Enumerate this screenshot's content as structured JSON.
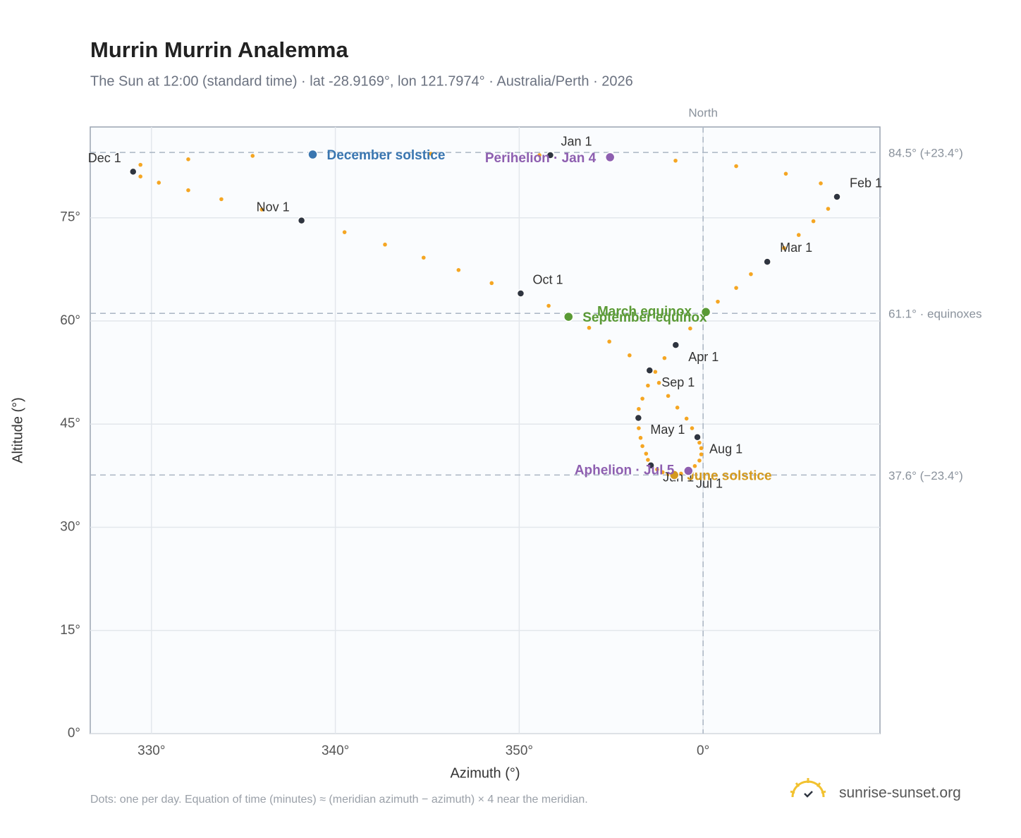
{
  "chart_data": {
    "type": "scatter",
    "title": "Murrin Murrin Analemma",
    "subtitle": "The Sun at 12:00 (standard time) · lat -28.9169°, lon 121.7974° · Australia/Perth · 2026",
    "x_label": "Azimuth (°)",
    "y_label": "Altitude (°)",
    "xlim": [
      -33.33,
      9.62
    ],
    "ylim": [
      0,
      88.2
    ],
    "xticks": [
      {
        "value": -30,
        "label": "330°"
      },
      {
        "value": -20,
        "label": "340°"
      },
      {
        "value": -10,
        "label": "350°"
      },
      {
        "value": 0,
        "label": "0°"
      }
    ],
    "yticks": [
      {
        "value": 0,
        "label": "0°"
      },
      {
        "value": 15,
        "label": "15°"
      },
      {
        "value": 30,
        "label": "30°"
      },
      {
        "value": 45,
        "label": "45°"
      },
      {
        "value": 60,
        "label": "60°"
      },
      {
        "value": 75,
        "label": "75°"
      }
    ],
    "grid": true,
    "points": {
      "color": "#f5a623",
      "x": [
        -8.3,
        -5.0,
        -1.5,
        1.8,
        4.5,
        6.4,
        7.28,
        6.8,
        6.0,
        5.2,
        4.4,
        3.49,
        2.6,
        1.8,
        0.8,
        0.1,
        -0.7,
        -1.49,
        -2.1,
        -2.6,
        -3.0,
        -3.3,
        -3.5,
        -3.52,
        -3.5,
        -3.4,
        -3.3,
        -3.1,
        -3.0,
        -2.84,
        -2.5,
        -2.2,
        -1.9,
        -1.57,
        -1.2,
        -0.77,
        -0.45,
        -0.2,
        -0.1,
        -0.1,
        -0.2,
        -0.31,
        -0.6,
        -0.9,
        -1.4,
        -1.9,
        -2.4,
        -2.91,
        -4.0,
        -5.1,
        -6.2,
        -7.2,
        -8.4,
        -9.92,
        -11.5,
        -13.3,
        -15.2,
        -17.3,
        -19.5,
        -21.84,
        -24.0,
        -26.2,
        -28.0,
        -29.6,
        -30.6,
        -31.0,
        -30.6,
        -28.0,
        -24.5,
        -21.2,
        -14.8,
        -8.9
      ],
      "y": [
        84.1,
        83.8,
        83.3,
        82.5,
        81.4,
        80.0,
        78.05,
        76.3,
        74.5,
        72.5,
        70.6,
        68.6,
        66.8,
        64.8,
        62.8,
        61.0,
        58.9,
        56.5,
        54.6,
        52.6,
        50.6,
        48.7,
        47.2,
        45.9,
        44.4,
        43.0,
        41.8,
        40.7,
        39.8,
        39.0,
        38.4,
        38.0,
        37.7,
        37.6,
        37.8,
        38.3,
        38.9,
        39.7,
        40.6,
        41.5,
        42.3,
        43.1,
        44.4,
        45.8,
        47.4,
        49.1,
        51.0,
        52.8,
        55.0,
        57.0,
        59.0,
        60.5,
        62.2,
        64.0,
        65.5,
        67.4,
        69.2,
        71.1,
        72.9,
        74.6,
        76.2,
        77.7,
        79.0,
        80.1,
        81.0,
        81.7,
        82.7,
        83.5,
        84.0,
        84.2,
        84.3,
        84.1
      ]
    },
    "months": {
      "color": "#2f3540",
      "labels": [
        "Jan 1",
        "Feb 1",
        "Mar 1",
        "Apr 1",
        "May 1",
        "Jun 1",
        "Jul 1",
        "Aug 1",
        "Sep 1",
        "Oct 1",
        "Nov 1",
        "Dec 1"
      ],
      "x": [
        -8.31,
        7.28,
        3.49,
        -1.49,
        -3.52,
        -2.84,
        -0.77,
        -0.31,
        -2.91,
        -9.92,
        -21.84,
        -31.0
      ],
      "y": [
        84.1,
        78.05,
        68.6,
        56.5,
        45.9,
        39.0,
        38.3,
        43.1,
        52.8,
        64.0,
        74.6,
        81.7
      ]
    },
    "events": [
      {
        "label": "December solstice",
        "x": -21.23,
        "y": 84.2,
        "color": "#3a76b0"
      },
      {
        "label": "Perihelion · Jan 4",
        "x": -5.06,
        "y": 83.8,
        "color": "#8e5fb0"
      },
      {
        "label": "March equinox",
        "x": 0.15,
        "y": 61.3,
        "color": "#5a9a35"
      },
      {
        "label": "September equinox",
        "x": -7.32,
        "y": 60.6,
        "color": "#5a9a35"
      },
      {
        "label": "June solstice",
        "x": -1.57,
        "y": 37.6,
        "color": "#d49a1e"
      },
      {
        "label": "Aphelion · Jul 5",
        "x": -0.8,
        "y": 38.2,
        "color": "#8e5fb0"
      }
    ],
    "ref_lines": [
      {
        "value": 84.5,
        "label": "84.5° (+23.4°)"
      },
      {
        "value": 61.1,
        "label": "61.1° · equinoxes"
      },
      {
        "value": 37.6,
        "label": "37.6° (−23.4°)"
      }
    ],
    "north_line": {
      "value": 0,
      "label": "North"
    },
    "footnote": "Dots: one per day. Equation of time (minutes) ≈ (meridian azimuth − azimuth) × 4 near the meridian.",
    "source": "sunrise-sunset.org"
  }
}
